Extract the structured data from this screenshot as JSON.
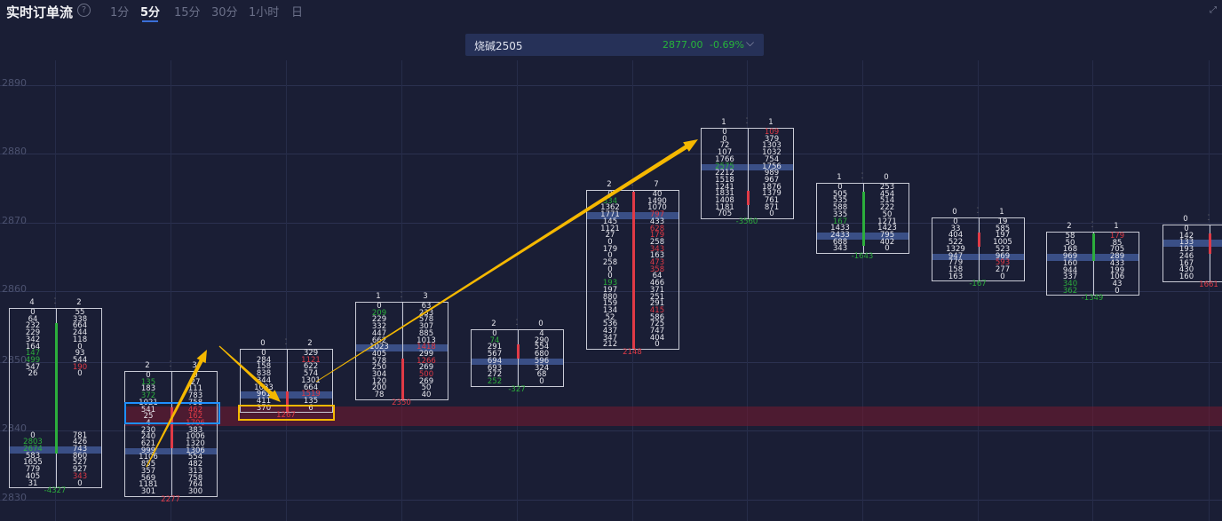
{
  "header": {
    "title": "实时订单流",
    "help_icon": "question-circle-icon",
    "timeframes": [
      "1分",
      "5分",
      "15分",
      "30分",
      "1小时",
      "日"
    ],
    "active_timeframe": "5分",
    "expand_icon": "expand-arrows-icon"
  },
  "symbol": {
    "name": "烧碱2505",
    "price": "2877.00",
    "change": "-0.69%",
    "chevron": "chevron-down-icon"
  },
  "colors": {
    "background": "#1a1e35",
    "up": "#2cae3c",
    "down": "#e03a46",
    "poc": "#3a4f86",
    "arrow": "#f5b800",
    "select_blue": "#1e90ff",
    "select_yellow": "#f5b800"
  },
  "price_axis": [
    "2890",
    "2880",
    "2870",
    "2860",
    "2850",
    "2840",
    "2830"
  ],
  "footprint": [
    {
      "head": [
        "4",
        "2"
      ],
      "delta": "-4327",
      "delta_dir": "up",
      "poc": 20,
      "bar": {
        "dir": "up",
        "from": 2,
        "to": 20
      },
      "rows": [
        [
          "0",
          "55"
        ],
        [
          "64",
          "338"
        ],
        [
          "232",
          "664"
        ],
        [
          "229",
          "244"
        ],
        [
          "342",
          "118"
        ],
        [
          "164",
          "0"
        ],
        [
          "147|up",
          "93"
        ],
        [
          "499|up",
          "544"
        ],
        [
          "547",
          "190|dn"
        ],
        [
          "26",
          "0"
        ],
        [
          "",
          ""
        ],
        [
          "",
          ""
        ],
        [
          "",
          ""
        ],
        [
          "",
          ""
        ],
        [
          "",
          ""
        ],
        [
          "",
          ""
        ],
        [
          "",
          ""
        ],
        [
          "",
          ""
        ],
        [
          "0",
          "781"
        ],
        [
          "2803|up",
          "426"
        ],
        [
          "2674|up",
          "743"
        ],
        [
          "583",
          "860"
        ],
        [
          "1655",
          "527"
        ],
        [
          "779",
          "927"
        ],
        [
          "405",
          "343|dn"
        ],
        [
          "31",
          "0"
        ]
      ]
    },
    {
      "head": [
        "2",
        "3"
      ],
      "delta": "2277",
      "delta_dir": "dn",
      "poc": 11,
      "bar": {
        "dir": "dn",
        "from": 5,
        "to": 10
      },
      "rows": [
        [
          "0",
          "0"
        ],
        [
          "135|up",
          "27"
        ],
        [
          "183",
          "111"
        ],
        [
          "372|up",
          "783"
        ],
        [
          "1021",
          "758"
        ],
        [
          "541",
          "462|dn"
        ],
        [
          "25",
          "162|dn"
        ],
        [
          "4",
          "1706|dn"
        ],
        [
          "230",
          "383"
        ],
        [
          "240",
          "1006"
        ],
        [
          "621",
          "1320"
        ],
        [
          "999",
          "1306"
        ],
        [
          "1106",
          "554"
        ],
        [
          "855",
          "482"
        ],
        [
          "357",
          "313"
        ],
        [
          "569",
          "758"
        ],
        [
          "1181",
          "764"
        ],
        [
          "301",
          "300"
        ]
      ]
    },
    {
      "head": [
        "0",
        "2"
      ],
      "delta": "1267",
      "delta_dir": "dn",
      "poc": 6,
      "bar": {
        "dir": "dn",
        "from": 6,
        "to": 8
      },
      "rows": [
        [
          "0",
          "329"
        ],
        [
          "284",
          "1121|dn"
        ],
        [
          "158",
          "622"
        ],
        [
          "838",
          "574"
        ],
        [
          "344",
          "1301"
        ],
        [
          "1033",
          "664"
        ],
        [
          "961",
          "1519|dn"
        ],
        [
          "411",
          "135"
        ],
        [
          "370",
          "6"
        ]
      ]
    },
    {
      "head": [
        "1",
        "3"
      ],
      "delta": "2350",
      "delta_dir": "dn",
      "poc": 6,
      "bar": {
        "dir": "dn",
        "from": 8,
        "to": 13
      },
      "rows": [
        [
          "0",
          "63"
        ],
        [
          "209|up",
          "233"
        ],
        [
          "229",
          "578"
        ],
        [
          "332",
          "307"
        ],
        [
          "447",
          "885"
        ],
        [
          "662",
          "1013"
        ],
        [
          "1023",
          "1418|dn"
        ],
        [
          "405",
          "299"
        ],
        [
          "578",
          "1266|dn"
        ],
        [
          "250",
          "269"
        ],
        [
          "304",
          "500|dn"
        ],
        [
          "120",
          "269"
        ],
        [
          "200",
          "50"
        ],
        [
          "78",
          "40"
        ]
      ]
    },
    {
      "head": [
        "2",
        "0"
      ],
      "delta": "-327",
      "delta_dir": "up",
      "poc": 4,
      "bar": {
        "dir": "dn",
        "from": 2,
        "to": 3
      },
      "rows": [
        [
          "0",
          "4"
        ],
        [
          "74|up",
          "290"
        ],
        [
          "291",
          "554"
        ],
        [
          "567",
          "680"
        ],
        [
          "694",
          "596"
        ],
        [
          "693",
          "324"
        ],
        [
          "272",
          "68"
        ],
        [
          "252|up",
          "0"
        ]
      ]
    },
    {
      "head": [
        "2",
        "7"
      ],
      "delta": "2148",
      "delta_dir": "dn",
      "poc": 3,
      "bar": {
        "dir": "dn",
        "from": 0,
        "to": 22
      },
      "rows": [
        [
          "0",
          "40"
        ],
        [
          "334|up",
          "1490"
        ],
        [
          "1362",
          "1070"
        ],
        [
          "1771",
          "797|dn"
        ],
        [
          "145",
          "433"
        ],
        [
          "1121",
          "628|dn"
        ],
        [
          "27",
          "179|dn"
        ],
        [
          "0",
          "258"
        ],
        [
          "179",
          "343|dn"
        ],
        [
          "0",
          "163"
        ],
        [
          "258",
          "473|dn"
        ],
        [
          "0",
          "358|dn"
        ],
        [
          "0",
          "64"
        ],
        [
          "193|up",
          "466"
        ],
        [
          "197",
          "371"
        ],
        [
          "880",
          "251"
        ],
        [
          "159",
          "291"
        ],
        [
          "134",
          "415|dn"
        ],
        [
          "52",
          "586"
        ],
        [
          "536",
          "725"
        ],
        [
          "437",
          "747"
        ],
        [
          "347",
          "404"
        ],
        [
          "212",
          "0"
        ]
      ]
    },
    {
      "head": [
        "1",
        "1"
      ],
      "delta": "-3560",
      "delta_dir": "up",
      "poc": 5,
      "bar": {
        "dir": "dn",
        "from": 9,
        "to": 10
      },
      "rows": [
        [
          "0",
          "109|dn"
        ],
        [
          "0",
          "379"
        ],
        [
          "72",
          "1303"
        ],
        [
          "107",
          "1032"
        ],
        [
          "1766",
          "754"
        ],
        [
          "2575|up",
          "1756"
        ],
        [
          "2212",
          "989"
        ],
        [
          "1518",
          "967"
        ],
        [
          "1241",
          "1876"
        ],
        [
          "1831",
          "1379"
        ],
        [
          "1408",
          "761"
        ],
        [
          "1181",
          "871"
        ],
        [
          "705",
          "0"
        ]
      ]
    },
    {
      "head": [
        "1",
        "0"
      ],
      "delta": "-1643",
      "delta_dir": "up",
      "poc": 7,
      "bar": {
        "dir": "up",
        "from": 1,
        "to": 8
      },
      "rows": [
        [
          "0",
          "253"
        ],
        [
          "505",
          "454"
        ],
        [
          "535",
          "514"
        ],
        [
          "588",
          "222"
        ],
        [
          "335",
          "50"
        ],
        [
          "167|up",
          "1271"
        ],
        [
          "1433",
          "1423"
        ],
        [
          "2433",
          "795"
        ],
        [
          "688",
          "402"
        ],
        [
          "343",
          "0"
        ]
      ]
    },
    {
      "head": [
        "0",
        "1"
      ],
      "delta": "-167",
      "delta_dir": "up",
      "poc": 5,
      "bar": {
        "dir": "dn",
        "from": 2,
        "to": 3
      },
      "rows": [
        [
          "0",
          "19"
        ],
        [
          "33",
          "585"
        ],
        [
          "404",
          "197"
        ],
        [
          "522",
          "1005"
        ],
        [
          "1329",
          "523"
        ],
        [
          "947",
          "969"
        ],
        [
          "779",
          "593|dn"
        ],
        [
          "158",
          "277"
        ],
        [
          "163",
          "0"
        ]
      ]
    },
    {
      "head": [
        "2",
        "1"
      ],
      "delta": "-1349",
      "delta_dir": "up",
      "poc": 3,
      "bar": {
        "dir": "up",
        "from": 0,
        "to": 3
      },
      "rows": [
        [
          "58",
          "179|dn"
        ],
        [
          "50",
          "85"
        ],
        [
          "168",
          "705"
        ],
        [
          "969",
          "289"
        ],
        [
          "160",
          "433"
        ],
        [
          "944",
          "199"
        ],
        [
          "337",
          "106"
        ],
        [
          "340|up",
          "43"
        ],
        [
          "362|up",
          "0"
        ]
      ]
    },
    {
      "head": [
        "0",
        ""
      ],
      "delta": "1661",
      "delta_dir": "dn",
      "poc": 2,
      "bar": {
        "dir": "dn",
        "from": 1,
        "to": 3
      },
      "rows": [
        [
          "0",
          ""
        ],
        [
          "142",
          ""
        ],
        [
          "133",
          ""
        ],
        [
          "193",
          ""
        ],
        [
          "246",
          ""
        ],
        [
          "167",
          ""
        ],
        [
          "430",
          ""
        ],
        [
          "160",
          ""
        ]
      ]
    }
  ]
}
